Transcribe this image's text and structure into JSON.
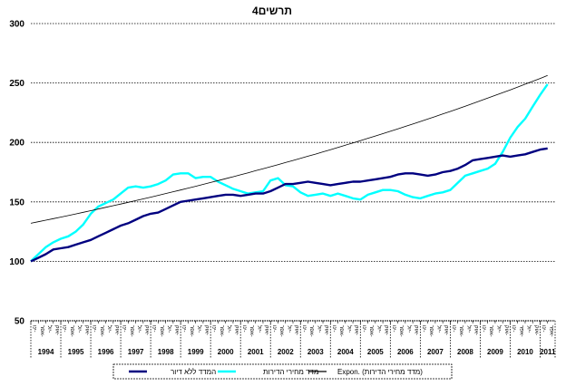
{
  "chart_data": {
    "type": "line",
    "title": "תרשים4",
    "ylim": [
      50,
      300
    ],
    "yticks": [
      50,
      100,
      150,
      200,
      250,
      300
    ],
    "grid": "horizontal dotted",
    "quarter_labels": [
      "ינו-",
      "אפר-",
      "יול-",
      "אוק-"
    ],
    "years": [
      "1994",
      "1995",
      "1996",
      "1997",
      "1998",
      "1999",
      "2000",
      "2001",
      "2002",
      "2003",
      "2004",
      "2005",
      "2006",
      "2007",
      "2008",
      "2009",
      "2010",
      "2011"
    ],
    "x": [
      1994.0,
      1994.25,
      1994.5,
      1994.75,
      1995.0,
      1995.25,
      1995.5,
      1995.75,
      1996.0,
      1996.25,
      1996.5,
      1996.75,
      1997.0,
      1997.25,
      1997.5,
      1997.75,
      1998.0,
      1998.25,
      1998.5,
      1998.75,
      1999.0,
      1999.25,
      1999.5,
      1999.75,
      2000.0,
      2000.25,
      2000.5,
      2000.75,
      2001.0,
      2001.25,
      2001.5,
      2001.75,
      2002.0,
      2002.25,
      2002.5,
      2002.75,
      2003.0,
      2003.25,
      2003.5,
      2003.75,
      2004.0,
      2004.25,
      2004.5,
      2004.75,
      2005.0,
      2005.25,
      2005.5,
      2005.75,
      2006.0,
      2006.25,
      2006.5,
      2006.75,
      2007.0,
      2007.25,
      2007.5,
      2007.75,
      2008.0,
      2008.25,
      2008.5,
      2008.75,
      2009.0,
      2009.25,
      2009.5,
      2009.75,
      2010.0,
      2010.25,
      2010.5,
      2010.75,
      2011.0,
      2011.25
    ],
    "series": [
      {
        "name": "המדד ללא דיור",
        "color": "#000080",
        "width": 2.4,
        "values": [
          100,
          103,
          106,
          110,
          111,
          112,
          114,
          116,
          118,
          121,
          124,
          127,
          130,
          132,
          135,
          138,
          140,
          141,
          144,
          147,
          150,
          151,
          152,
          153,
          154,
          155,
          156,
          156,
          155,
          156,
          157,
          157,
          159,
          162,
          165,
          165,
          166,
          167,
          166,
          165,
          164,
          165,
          166,
          167,
          167,
          168,
          169,
          170,
          171,
          173,
          174,
          174,
          173,
          172,
          173,
          175,
          176,
          178,
          181,
          185,
          186,
          187,
          188,
          189,
          188,
          189,
          190,
          192,
          194,
          195
        ]
      },
      {
        "name": "מדד מחירי הדירות",
        "color": "#00ffff",
        "width": 2.4,
        "values": [
          100,
          106,
          112,
          116,
          119,
          121,
          125,
          131,
          140,
          146,
          149,
          152,
          157,
          162,
          163,
          162,
          163,
          165,
          168,
          173,
          174,
          174,
          170,
          171,
          171,
          167,
          164,
          161,
          159,
          157,
          158,
          159,
          168,
          170,
          164,
          163,
          158,
          155,
          156,
          157,
          155,
          157,
          155,
          153,
          152,
          156,
          158,
          160,
          160,
          159,
          156,
          154,
          153,
          155,
          157,
          158,
          160,
          166,
          172,
          174,
          176,
          178,
          182,
          192,
          204,
          213,
          220,
          230,
          240,
          249
        ]
      },
      {
        "name": "Expon. (מדד מחירי הדירות)",
        "color": "#000000",
        "width": 0.8,
        "values": [
          132,
          133.3,
          134.6,
          135.9,
          137.2,
          138.5,
          139.9,
          141.2,
          142.6,
          144.0,
          145.4,
          146.8,
          148.2,
          149.6,
          151.1,
          152.5,
          154.0,
          155.5,
          157.0,
          158.5,
          160.0,
          161.6,
          163.1,
          164.7,
          166.3,
          167.9,
          169.5,
          171.1,
          172.8,
          174.5,
          176.2,
          177.9,
          179.6,
          181.3,
          183.1,
          184.8,
          186.6,
          188.4,
          190.2,
          192.1,
          193.9,
          195.8,
          197.7,
          199.6,
          201.5,
          203.5,
          205.4,
          207.4,
          209.4,
          211.4,
          213.5,
          215.5,
          217.6,
          219.7,
          221.8,
          224.0,
          226.1,
          228.3,
          230.5,
          232.7,
          235.0,
          237.3,
          239.6,
          241.9,
          244.2,
          246.6,
          249.0,
          251.4,
          253.8,
          256.3
        ]
      }
    ]
  }
}
